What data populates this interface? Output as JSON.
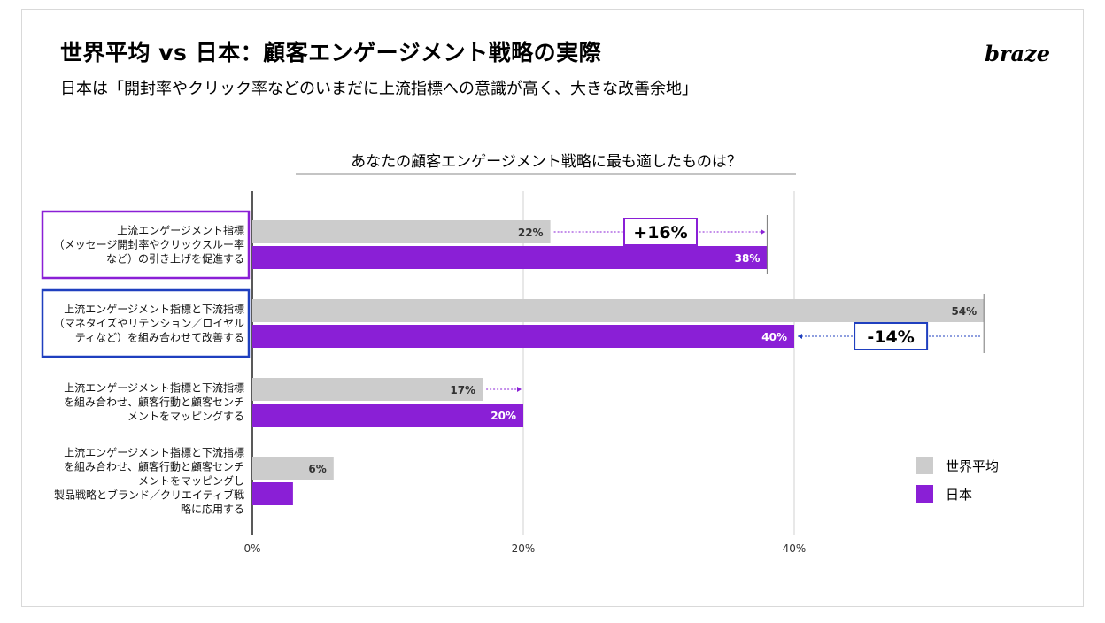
{
  "header": {
    "title": "世界平均 vs 日本：顧客エンゲージメント戦略の実際",
    "subtitle": "日本は「開封率やクリック率などのいまだに上流指標への意識が高く、大きな改善余地」",
    "logo": "braze"
  },
  "colors": {
    "world": "#cccccc",
    "japan": "#8a1fd6",
    "highlight_purple": "#8a1fd6",
    "highlight_blue": "#1f3fbf"
  },
  "chart_data": {
    "type": "bar",
    "orientation": "horizontal",
    "title": "あなたの顧客エンゲージメント戦略に最も適したものは？",
    "categories": [
      [
        "上流エンゲージメント指標",
        "（メッセージ開封率やクリックスルー率",
        "など）の引き上げを促進する"
      ],
      [
        "上流エンゲージメント指標と下流指標",
        "（マネタイズやリテンション／ロイヤル",
        "ティなど）を組み合わせて改善する"
      ],
      [
        "上流エンゲージメント指標と下流指標",
        "を組み合わせ、顧客行動と顧客センチ",
        "メントをマッピングする"
      ],
      [
        "上流エンゲージメント指標と下流指標",
        "を組み合わせ、顧客行動と顧客センチ",
        "メントをマッピングし",
        "製品戦略とブランド／クリエイティブ戦",
        "略に応用する"
      ]
    ],
    "series": [
      {
        "name": "世界平均",
        "values": [
          22,
          54,
          17,
          6
        ],
        "labels": [
          "22%",
          "54%",
          "17%",
          "6%"
        ]
      },
      {
        "name": "日本",
        "values": [
          38,
          40,
          20,
          3
        ],
        "labels": [
          "38%",
          "40%",
          "20%",
          ""
        ]
      }
    ],
    "xlim": [
      0,
      60
    ],
    "xticks": [
      0,
      20,
      40
    ],
    "xtick_labels": [
      "0%",
      "20%",
      "40%"
    ],
    "grid": true,
    "annotations": [
      {
        "category_index": 0,
        "text": "+16%",
        "from": 22,
        "to": 38,
        "style": "purple"
      },
      {
        "category_index": 1,
        "text": "-14%",
        "from": 54,
        "to": 40,
        "style": "blue"
      }
    ],
    "highlighted_categories": [
      {
        "index": 0,
        "style": "purple"
      },
      {
        "index": 1,
        "style": "blue"
      }
    ],
    "legend": {
      "placement": "right",
      "entries": [
        "世界平均",
        "日本"
      ]
    }
  }
}
